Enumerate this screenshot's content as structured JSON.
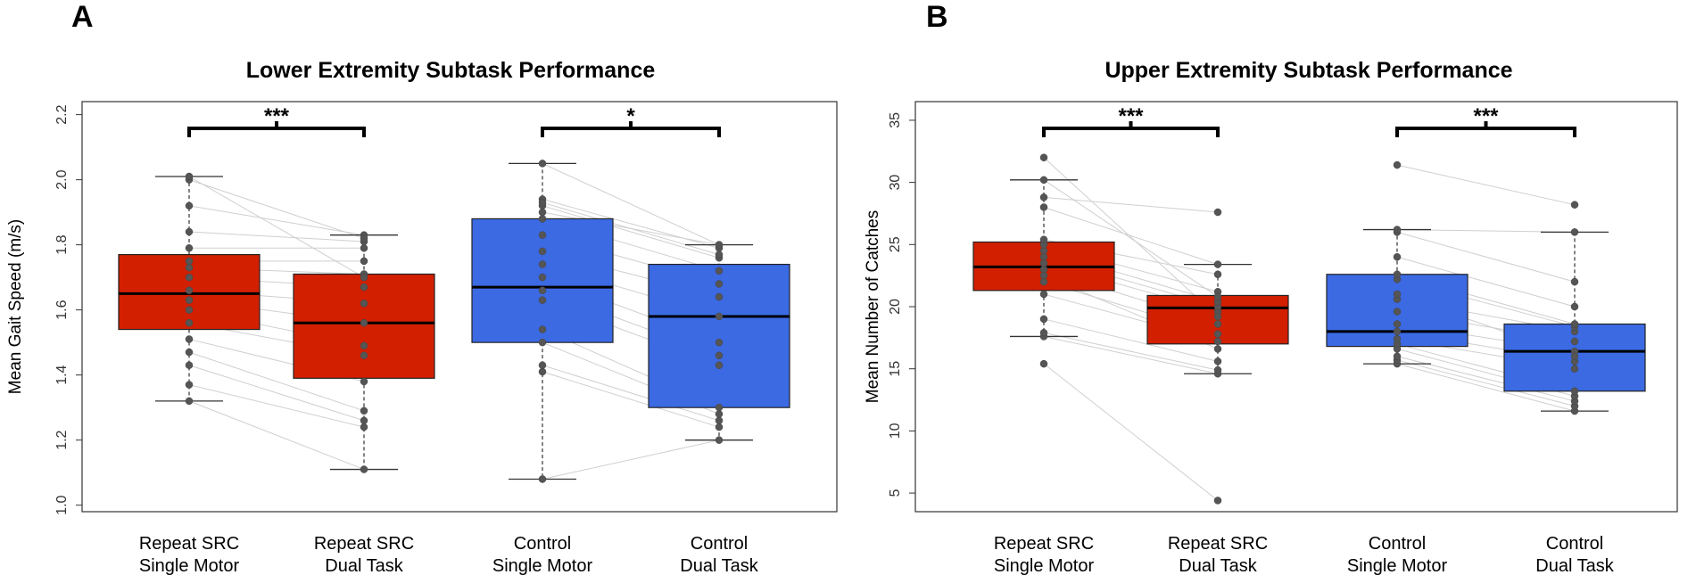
{
  "chart_data": [
    {
      "type": "box",
      "panel": "A",
      "title": "Lower Extremity Subtask Performance",
      "ylabel": "Mean Gait Speed (m/s)",
      "xlabel": "",
      "ylim": [
        0.98,
        2.24
      ],
      "yticks": [
        "1.0",
        "1.2",
        "1.4",
        "1.6",
        "1.8",
        "2.0",
        "2.2"
      ],
      "categories": [
        [
          "Repeat SRC",
          "Single Motor"
        ],
        [
          "Repeat SRC",
          "Dual Task"
        ],
        [
          "Control",
          "Single Motor"
        ],
        [
          "Control",
          "Dual Task"
        ]
      ],
      "colors": [
        "#d21f00",
        "#d21f00",
        "#3b6ae3",
        "#3b6ae3"
      ],
      "boxes": [
        {
          "min": 1.32,
          "q1": 1.54,
          "median": 1.65,
          "q3": 1.77,
          "max": 2.01
        },
        {
          "min": 1.11,
          "q1": 1.39,
          "median": 1.56,
          "q3": 1.71,
          "max": 1.83
        },
        {
          "min": 1.08,
          "q1": 1.5,
          "median": 1.67,
          "q3": 1.88,
          "max": 2.05
        },
        {
          "min": 1.2,
          "q1": 1.3,
          "median": 1.58,
          "q3": 1.74,
          "max": 1.8
        }
      ],
      "points": [
        [
          1.32,
          1.37,
          1.43,
          1.47,
          1.51,
          1.56,
          1.6,
          1.63,
          1.66,
          1.7,
          1.73,
          1.75,
          1.79,
          1.84,
          1.92,
          2.0,
          2.01
        ],
        [
          1.11,
          1.24,
          1.26,
          1.29,
          1.38,
          1.46,
          1.49,
          1.56,
          1.62,
          1.67,
          1.71,
          1.75,
          1.79,
          1.81,
          1.83,
          1.82,
          1.7
        ],
        [
          1.08,
          1.41,
          1.43,
          1.5,
          1.54,
          1.63,
          1.66,
          1.7,
          1.74,
          1.78,
          1.83,
          1.88,
          1.92,
          1.94,
          1.9,
          1.93,
          2.05
        ],
        [
          1.2,
          1.24,
          1.26,
          1.28,
          1.3,
          1.43,
          1.46,
          1.5,
          1.58,
          1.64,
          1.68,
          1.72,
          1.76,
          1.79,
          1.8,
          1.77,
          1.8
        ]
      ],
      "comparisons": [
        {
          "groups": [
            1,
            2
          ],
          "label": "***"
        },
        {
          "groups": [
            3,
            4
          ],
          "label": "*"
        }
      ]
    },
    {
      "type": "box",
      "panel": "B",
      "title": "Upper Extremity Subtask Performance",
      "ylabel": "Mean Number of Catches",
      "xlabel": "",
      "ylim": [
        3.5,
        36.5
      ],
      "yticks": [
        "5",
        "10",
        "15",
        "20",
        "25",
        "30",
        "35"
      ],
      "categories": [
        [
          "Repeat SRC",
          "Single Motor"
        ],
        [
          "Repeat SRC",
          "Dual Task"
        ],
        [
          "Control",
          "Single Motor"
        ],
        [
          "Control",
          "Dual Task"
        ]
      ],
      "colors": [
        "#d21f00",
        "#d21f00",
        "#3b6ae3",
        "#3b6ae3"
      ],
      "boxes": [
        {
          "min": 17.6,
          "q1": 21.3,
          "median": 23.2,
          "q3": 25.2,
          "max": 30.2
        },
        {
          "min": 14.6,
          "q1": 17.0,
          "median": 19.9,
          "q3": 20.9,
          "max": 23.4
        },
        {
          "min": 15.4,
          "q1": 16.8,
          "median": 18.0,
          "q3": 22.6,
          "max": 26.2
        },
        {
          "min": 11.6,
          "q1": 13.2,
          "median": 16.4,
          "q3": 18.6,
          "max": 26.0
        }
      ],
      "points": [
        [
          15.4,
          17.6,
          17.9,
          19.0,
          21.0,
          22.0,
          23.0,
          23.5,
          24.0,
          24.5,
          25.0,
          25.4,
          28.0,
          28.8,
          30.2,
          32.0,
          22.5
        ],
        [
          4.4,
          14.6,
          14.9,
          15.6,
          17.2,
          17.8,
          18.6,
          19.6,
          20.0,
          20.4,
          21.2,
          22.6,
          23.4,
          27.6,
          20.8,
          19.2,
          16.6
        ],
        [
          15.4,
          15.7,
          16.0,
          16.6,
          17.0,
          17.4,
          18.0,
          18.6,
          19.6,
          20.6,
          22.2,
          22.6,
          24.0,
          26.0,
          26.2,
          31.4,
          21.0
        ],
        [
          11.6,
          12.0,
          12.4,
          12.8,
          13.2,
          15.0,
          15.6,
          16.4,
          17.2,
          18.0,
          18.4,
          18.6,
          20.0,
          22.0,
          26.0,
          28.2,
          16.0
        ]
      ],
      "comparisons": [
        {
          "groups": [
            1,
            2
          ],
          "label": "***"
        },
        {
          "groups": [
            3,
            4
          ],
          "label": "***"
        }
      ]
    }
  ]
}
